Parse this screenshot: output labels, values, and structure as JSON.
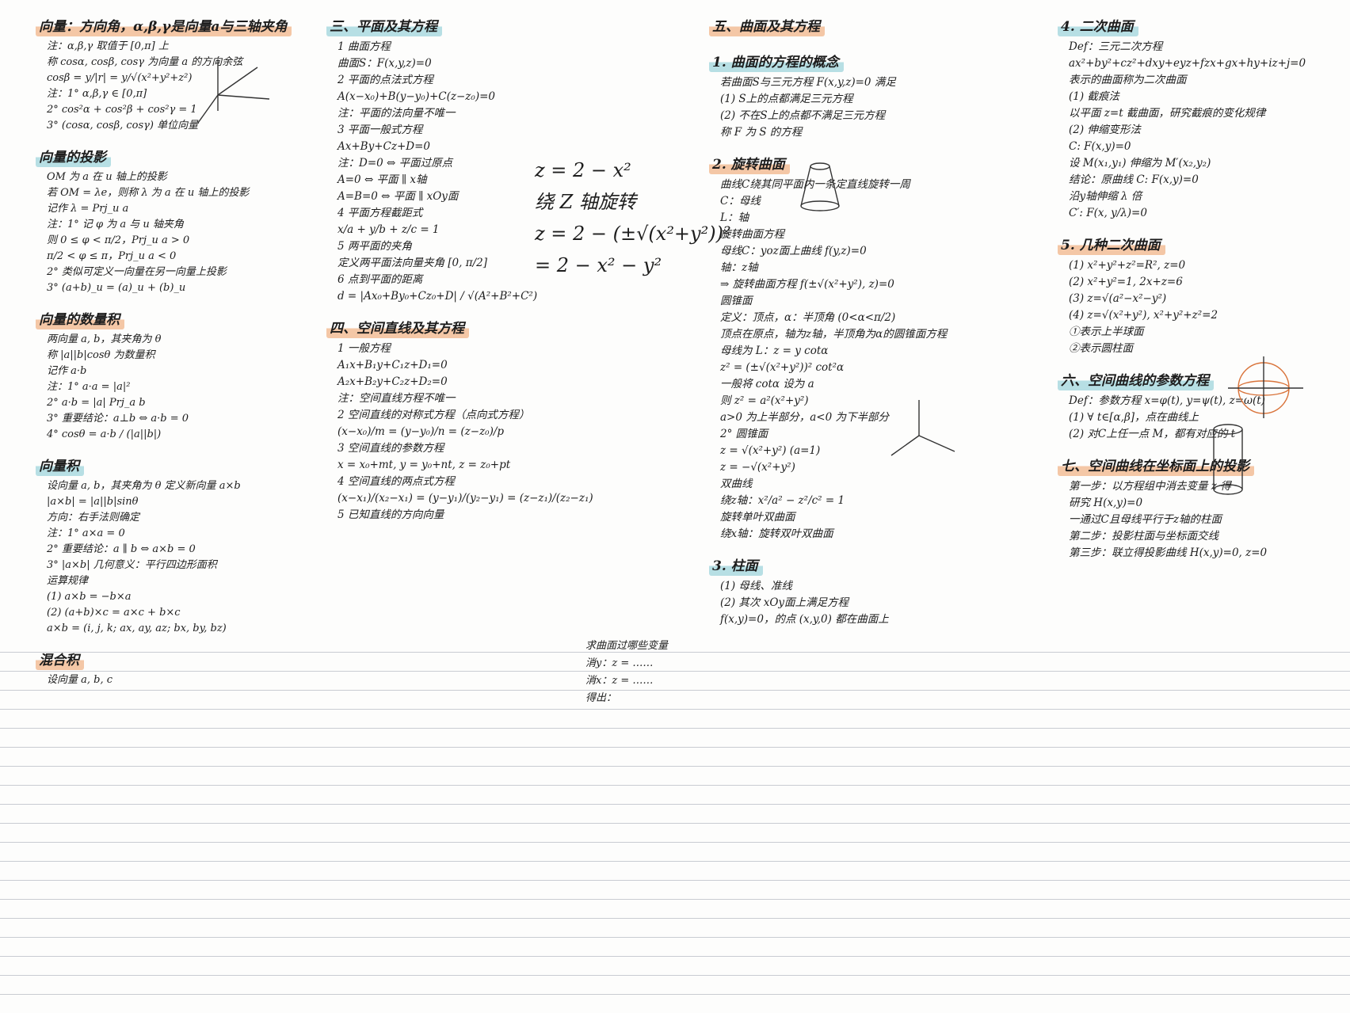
{
  "columns": [
    {
      "sections": [
        {
          "heading": "向量：方向角，α,β,γ是向量a与三轴夹角",
          "lines": [
            "注：α,β,γ 取值于 [0,π] 上",
            "称 cosα, cosβ, cosγ 为向量 a 的方向余弦",
            "cosβ = y/|r| = y/√(x²+y²+z²)",
            "注：1° α,β,γ ∈ [0,π]",
            "2° cos²α + cos²β + cos²γ = 1",
            "3° (cosα, cosβ, cosγ) 单位向量"
          ]
        },
        {
          "heading": "向量的投影",
          "lines": [
            "OM 为 a 在 u 轴上的投影",
            "若 OM = λe，则称 λ 为 a 在 u 轴上的投影",
            "记作 λ = Prj_u a",
            "注：1° 记 φ 为 a 与 u 轴夹角",
            "则 0 ≤ φ < π/2，Prj_u a > 0",
            "π/2 < φ ≤ π，Prj_u a < 0",
            "2° 类似可定义一向量在另一向量上投影",
            "3° (a+b)_u = (a)_u + (b)_u"
          ]
        },
        {
          "heading": "向量的数量积",
          "lines": [
            "两向量 a, b，其夹角为 θ",
            "称 |a||b|cosθ 为数量积",
            "记作 a·b",
            "注：1° a·a = |a|²",
            "2° a·b = |a| Prj_a b",
            "3° 重要结论：a⊥b ⇔ a·b = 0",
            "4° cosθ = a·b / (|a||b|)"
          ]
        },
        {
          "heading": "向量积",
          "lines": [
            "设向量 a, b，其夹角为 θ 定义新向量 a×b",
            "|a×b| = |a||b|sinθ",
            "方向：右手法则确定",
            "注：1° a×a = 0",
            "2° 重要结论：a ∥ b ⇔ a×b = 0",
            "3° |a×b| 几何意义：平行四边形面积",
            "运算规律",
            "(1) a×b = −b×a",
            "(2) (a+b)×c = a×c + b×c",
            "a×b = (i, j, k; ax, ay, az; bx, by, bz)"
          ]
        },
        {
          "heading": "混合积",
          "lines": [
            "设向量 a, b, c"
          ]
        }
      ]
    },
    {
      "sections": [
        {
          "heading": "三、平面及其方程",
          "lines": [
            "1 曲面方程",
            "曲面S：F(x,y,z)=0",
            "2 平面的点法式方程",
            "A(x−x₀)+B(y−y₀)+C(z−z₀)=0",
            "注：平面的法向量不唯一",
            "3 平面一般式方程",
            "Ax+By+Cz+D=0",
            "注：D=0 ⇔ 平面过原点",
            "A=0 ⇔ 平面 ∥ x轴",
            "A=B=0 ⇔ 平面 ∥ xOy面",
            "4 平面方程截距式",
            "x/a + y/b + z/c = 1",
            "5 两平面的夹角",
            "定义两平面法向量夹角 [0, π/2]",
            "6 点到平面的距离",
            "d = |Ax₀+By₀+Cz₀+D| / √(A²+B²+C²)"
          ]
        },
        {
          "heading": "四、空间直线及其方程",
          "lines": [
            "1 一般方程",
            "A₁x+B₁y+C₁z+D₁=0",
            "A₂x+B₂y+C₂z+D₂=0",
            "注：空间直线方程不唯一",
            "2 空间直线的对称式方程（点向式方程）",
            "(x−x₀)/m = (y−y₀)/n = (z−z₀)/p",
            "3 空间直线的参数方程",
            "x = x₀+mt, y = y₀+nt, z = z₀+pt",
            "4 空间直线的两点式方程",
            "(x−x₁)/(x₂−x₁) = (y−y₁)/(y₂−y₁) = (z−z₁)/(z₂−z₁)",
            "5 已知直线的方向向量"
          ]
        }
      ]
    },
    {
      "sections": [
        {
          "heading": "五、曲面及其方程",
          "lines": []
        },
        {
          "heading": "1. 曲面的方程的概念",
          "lines": [
            "若曲面S与三元方程 F(x,y,z)=0 满足",
            "(1) S上的点都满足三元方程",
            "(2) 不在S上的点都不满足三元方程",
            "称 F 为 S 的方程"
          ]
        },
        {
          "heading": "2. 旋转曲面",
          "lines": [
            "曲线C绕其同平面内一条定直线旋转一周",
            "C：母线",
            "L：轴",
            "旋转曲面方程",
            "母线C：yoz面上曲线 f(y,z)=0",
            "轴：z轴",
            "⇒ 旋转曲面方程 f(±√(x²+y²), z)=0",
            "圆锥面",
            "定义：顶点，α：半顶角 (0<α<π/2)",
            "顶点在原点，轴为z轴，半顶角为α的圆锥面方程",
            "母线为 L：z = y cotα",
            "z² = (±√(x²+y²))² cot²α",
            "一般将 cotα 设为 a",
            "则 z² = a²(x²+y²)",
            "a>0 为上半部分，a<0 为下半部分",
            "2° 圆锥面",
            "z = √(x²+y²)  (a=1)",
            "z = −√(x²+y²)",
            "双曲线",
            "绕z轴：x²/a² − z²/c² = 1",
            "旋转单叶双曲面",
            "绕x轴：旋转双叶双曲面"
          ]
        },
        {
          "heading": "3. 柱面",
          "lines": [
            "(1) 母线、准线",
            "(2) 其次 xOy面上满足方程",
            "f(x,y)=0，的点 (x,y,0) 都在曲面上"
          ]
        }
      ]
    },
    {
      "sections": [
        {
          "heading": "4. 二次曲面",
          "lines": [
            "Def：三元二次方程",
            "ax²+by²+cz²+dxy+eyz+fzx+gx+hy+iz+j=0",
            "表示的曲面称为二次曲面",
            "(1) 截痕法",
            "以平面 z=t 截曲面，研究截痕的变化规律",
            "(2) 伸缩变形法",
            "C: F(x,y)=0",
            "设 M(x₁,y₁) 伸缩为 M′(x₂,y₂)",
            "结论：原曲线 C: F(x,y)=0",
            "沿y轴伸缩 λ 倍",
            "C′: F(x, y/λ)=0"
          ]
        },
        {
          "heading": "5. 几种二次曲面",
          "lines": [
            "(1) x²+y²+z²=R², z=0",
            "(2) x²+y²=1, 2x+z=6",
            "(3) z=√(a²−x²−y²)",
            "(4) z=√(x²+y²), x²+y²+z²=2",
            "①表示上半球面",
            "②表示圆柱面"
          ]
        },
        {
          "heading": "六、空间曲线的参数方程",
          "lines": [
            "Def：参数方程 x=φ(t), y=ψ(t), z=ω(t)",
            "(1) ∀ t∈[α,β]，点在曲线上",
            "(2) 对C上任一点 M，都有对应的 t"
          ]
        },
        {
          "heading": "七、空间曲线在坐标面上的投影",
          "lines": [
            "第一步：以方程组中消去变量 z 得",
            "研究 H(x,y)=0",
            "一通过C且母线平行于z轴的柱面",
            "第二步：投影柱面与坐标面交线",
            "第三步：联立得投影曲线 H(x,y)=0, z=0"
          ]
        }
      ]
    }
  ],
  "side_calculation": [
    "z = 2 − x²",
    "绕 Z 轴旋转",
    "z = 2 − (±√(x²+y²))²",
    "= 2 − x² − y²"
  ],
  "side_note": [
    "求曲面过哪些变量",
    "消y：z = ……",
    "消x：z = ……",
    "得出："
  ]
}
